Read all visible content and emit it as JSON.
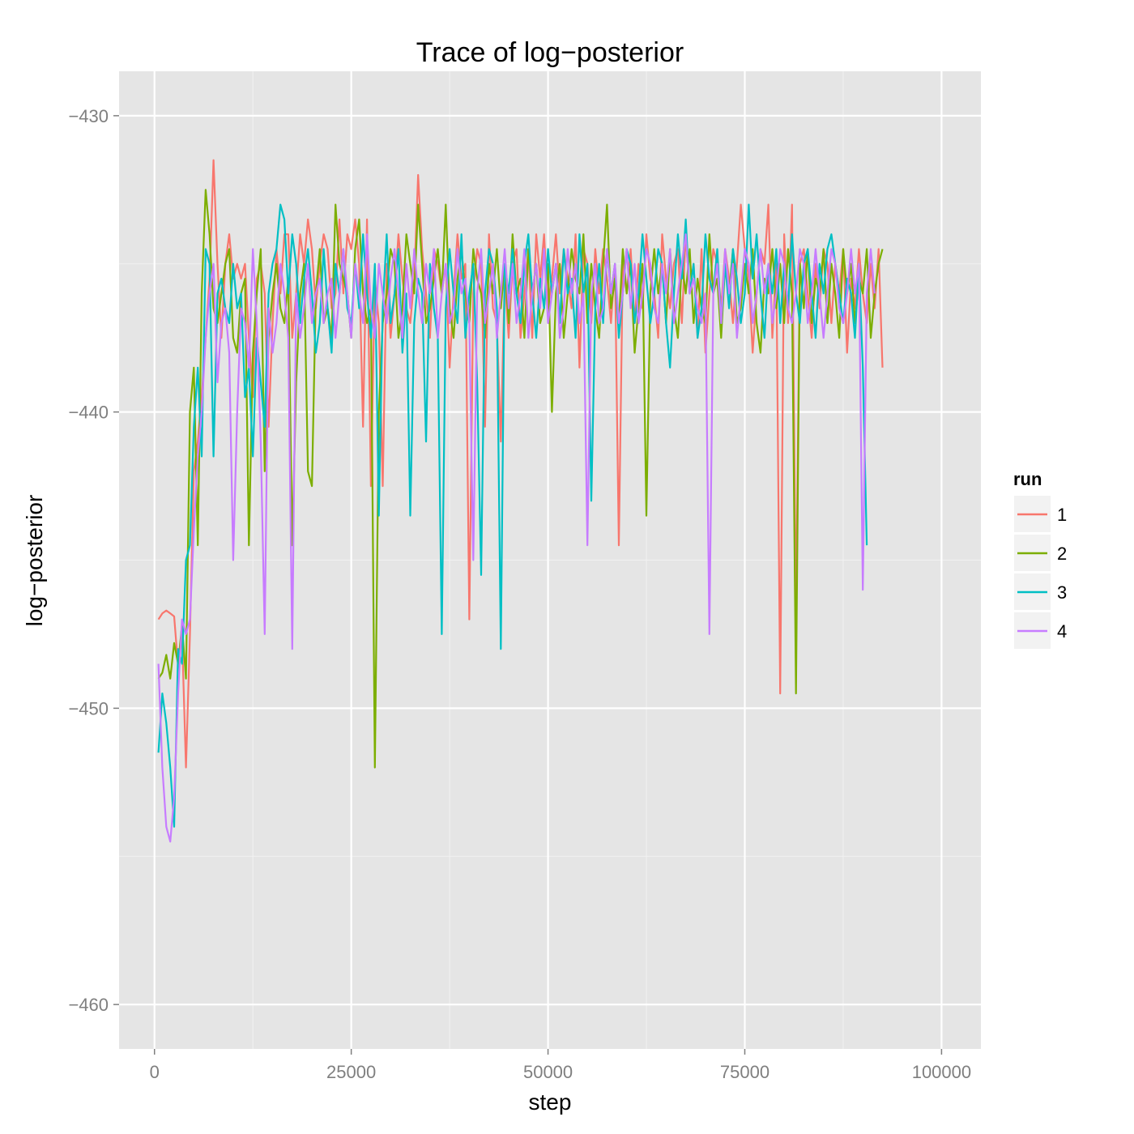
{
  "chart_data": {
    "type": "line",
    "title": "Trace of log−posterior",
    "xlabel": "step",
    "ylabel": "log−posterior",
    "xlim": [
      -4500,
      105000
    ],
    "ylim": [
      -461.5,
      -428.5
    ],
    "x_ticks": [
      0,
      25000,
      50000,
      75000,
      100000
    ],
    "x_tick_labels": [
      "0",
      "25000",
      "50000",
      "75000",
      "100000"
    ],
    "y_ticks": [
      -460,
      -450,
      -440,
      -430
    ],
    "y_tick_labels": [
      "−460",
      "−450",
      "−440",
      "−430"
    ],
    "grid": true,
    "background": "#e5e5e5",
    "legend": {
      "title": "run",
      "position": "right"
    },
    "x_start": 500,
    "x_step": 500,
    "series": [
      {
        "name": "1",
        "color": "#f8766d",
        "values": [
          -447.0,
          -446.8,
          -446.7,
          -446.8,
          -446.9,
          -448.6,
          -447.5,
          -452.0,
          -447.5,
          -442.0,
          -441.0,
          -439.5,
          -437.5,
          -435.5,
          -431.5,
          -435.0,
          -437.5,
          -435.0,
          -434.0,
          -435.5,
          -435.0,
          -435.5,
          -435.0,
          -437.5,
          -439.5,
          -435.5,
          -435.0,
          -436.0,
          -440.5,
          -437.0,
          -434.5,
          -436.0,
          -434.0,
          -434.0,
          -437.5,
          -436.0,
          -434.0,
          -435.0,
          -433.5,
          -434.5,
          -436.5,
          -435.0,
          -434.0,
          -434.5,
          -436.5,
          -436.0,
          -433.5,
          -436.0,
          -434.0,
          -434.5,
          -433.5,
          -435.0,
          -440.5,
          -433.5,
          -442.5,
          -435.5,
          -437.0,
          -442.5,
          -435.0,
          -437.5,
          -436.0,
          -434.0,
          -435.5,
          -436.5,
          -437.0,
          -435.5,
          -432.0,
          -434.5,
          -436.0,
          -437.5,
          -434.5,
          -435.0,
          -436.0,
          -435.0,
          -438.5,
          -436.0,
          -434.0,
          -435.5,
          -435.0,
          -447.0,
          -436.0,
          -434.5,
          -435.0,
          -440.5,
          -434.0,
          -436.5,
          -437.0,
          -441.0,
          -435.5,
          -437.5,
          -435.0,
          -434.5,
          -437.5,
          -436.0,
          -434.5,
          -437.5,
          -434.0,
          -435.5,
          -434.0,
          -436.5,
          -435.5,
          -434.0,
          -436.0,
          -434.5,
          -435.5,
          -436.5,
          -434.0,
          -438.5,
          -434.5,
          -435.0,
          -437.0,
          -434.5,
          -436.0,
          -434.5,
          -435.5,
          -437.0,
          -435.0,
          -444.5,
          -435.0,
          -436.0,
          -434.5,
          -437.0,
          -435.0,
          -436.5,
          -434.0,
          -435.5,
          -436.0,
          -437.5,
          -434.0,
          -435.5,
          -436.5,
          -435.0,
          -434.5,
          -437.0,
          -434.0,
          -436.0,
          -435.0,
          -437.5,
          -434.5,
          -438.0,
          -436.0,
          -434.5,
          -435.0,
          -436.5,
          -434.5,
          -435.5,
          -437.0,
          -435.0,
          -433.0,
          -434.5,
          -435.5,
          -438.0,
          -436.0,
          -434.5,
          -435.0,
          -433.0,
          -437.5,
          -435.0,
          -449.5,
          -434.0,
          -437.0,
          -433.0,
          -447.0,
          -435.0,
          -434.5,
          -436.0,
          -437.5,
          -435.0,
          -436.5,
          -434.5,
          -435.0,
          -437.0,
          -435.0,
          -436.0,
          -434.5,
          -438.0,
          -435.5,
          -436.5,
          -434.5,
          -436.0,
          -437.0,
          -435.0,
          -436.5,
          -434.5,
          -438.5
        ]
      },
      {
        "name": "2",
        "color": "#7cae00",
        "values": [
          -449.0,
          -448.8,
          -448.2,
          -449.0,
          -447.8,
          -448.5,
          -447.2,
          -449.0,
          -440.0,
          -438.5,
          -444.5,
          -436.0,
          -432.5,
          -434.0,
          -436.5,
          -437.0,
          -436.0,
          -435.0,
          -434.5,
          -437.5,
          -438.0,
          -436.0,
          -435.5,
          -444.5,
          -438.0,
          -436.0,
          -434.5,
          -442.0,
          -437.5,
          -436.0,
          -435.0,
          -436.5,
          -437.0,
          -435.5,
          -444.5,
          -439.0,
          -436.0,
          -435.0,
          -442.0,
          -442.5,
          -436.0,
          -434.5,
          -437.0,
          -436.5,
          -437.5,
          -433.0,
          -435.0,
          -435.5,
          -436.0,
          -437.5,
          -434.5,
          -433.5,
          -436.0,
          -437.0,
          -436.5,
          -452.0,
          -440.0,
          -437.0,
          -436.0,
          -434.5,
          -435.0,
          -437.5,
          -436.5,
          -434.0,
          -435.0,
          -436.0,
          -433.0,
          -435.0,
          -437.0,
          -436.5,
          -435.5,
          -434.5,
          -436.0,
          -433.0,
          -436.5,
          -437.5,
          -435.5,
          -434.5,
          -436.0,
          -437.0,
          -434.5,
          -435.5,
          -436.0,
          -437.5,
          -435.0,
          -436.0,
          -434.5,
          -436.5,
          -435.0,
          -437.0,
          -434.0,
          -436.0,
          -435.5,
          -437.5,
          -434.5,
          -436.0,
          -435.0,
          -437.0,
          -436.5,
          -435.0,
          -440.0,
          -436.0,
          -435.0,
          -437.5,
          -436.0,
          -434.5,
          -435.5,
          -436.0,
          -434.0,
          -437.0,
          -435.0,
          -436.5,
          -437.5,
          -435.0,
          -433.0,
          -436.5,
          -435.5,
          -437.0,
          -434.5,
          -436.0,
          -435.0,
          -438.0,
          -436.5,
          -435.0,
          -443.5,
          -436.0,
          -434.5,
          -436.0,
          -435.0,
          -437.0,
          -434.5,
          -436.5,
          -437.5,
          -435.0,
          -436.0,
          -434.5,
          -437.0,
          -435.5,
          -436.5,
          -437.0,
          -434.0,
          -436.0,
          -435.5,
          -437.5,
          -435.0,
          -436.0,
          -434.5,
          -437.0,
          -436.5,
          -435.0,
          -436.0,
          -434.5,
          -437.0,
          -438.0,
          -435.5,
          -436.0,
          -434.5,
          -436.5,
          -435.0,
          -437.0,
          -434.5,
          -436.0,
          -449.5,
          -435.0,
          -436.5,
          -434.5,
          -437.0,
          -435.5,
          -436.0,
          -434.5,
          -437.0,
          -435.0,
          -436.0,
          -437.5,
          -434.5,
          -436.0,
          -435.0,
          -437.0,
          -435.5,
          -436.0,
          -434.5,
          -437.5,
          -436.0,
          -435.0,
          -434.5
        ]
      },
      {
        "name": "3",
        "color": "#00bfc4",
        "values": [
          -451.5,
          -449.5,
          -450.5,
          -452.0,
          -454.0,
          -448.0,
          -448.5,
          -445.0,
          -444.5,
          -440.5,
          -438.5,
          -441.5,
          -434.5,
          -435.0,
          -441.5,
          -436.0,
          -435.5,
          -436.5,
          -437.0,
          -435.0,
          -436.5,
          -436.0,
          -439.5,
          -438.5,
          -441.5,
          -437.5,
          -439.0,
          -440.5,
          -436.0,
          -435.0,
          -434.5,
          -433.0,
          -433.5,
          -436.0,
          -434.0,
          -435.0,
          -437.0,
          -435.5,
          -434.5,
          -436.0,
          -438.0,
          -437.0,
          -434.5,
          -436.5,
          -438.0,
          -435.0,
          -436.0,
          -434.5,
          -436.5,
          -437.0,
          -435.0,
          -436.5,
          -434.0,
          -436.0,
          -437.5,
          -435.0,
          -443.5,
          -436.5,
          -434.0,
          -437.0,
          -436.0,
          -434.5,
          -438.0,
          -436.0,
          -443.5,
          -437.0,
          -435.5,
          -436.0,
          -441.0,
          -435.0,
          -436.5,
          -437.5,
          -447.5,
          -436.5,
          -434.5,
          -436.0,
          -437.0,
          -434.0,
          -437.5,
          -436.0,
          -435.0,
          -439.0,
          -445.5,
          -436.0,
          -434.5,
          -435.0,
          -436.5,
          -448.0,
          -435.0,
          -436.0,
          -434.5,
          -436.0,
          -437.0,
          -435.0,
          -434.0,
          -436.0,
          -437.5,
          -435.5,
          -436.5,
          -434.5,
          -436.0,
          -435.0,
          -437.0,
          -434.5,
          -436.0,
          -435.5,
          -437.5,
          -434.0,
          -436.0,
          -435.0,
          -443.0,
          -436.5,
          -435.0,
          -437.0,
          -434.5,
          -436.0,
          -435.0,
          -437.5,
          -436.0,
          -434.5,
          -435.0,
          -437.0,
          -436.0,
          -434.0,
          -435.5,
          -437.0,
          -436.0,
          -434.5,
          -435.0,
          -437.0,
          -438.5,
          -436.0,
          -434.0,
          -435.5,
          -433.5,
          -436.0,
          -435.0,
          -437.5,
          -436.5,
          -434.0,
          -435.5,
          -436.0,
          -434.5,
          -437.0,
          -435.0,
          -436.5,
          -434.5,
          -435.5,
          -437.0,
          -436.0,
          -433.0,
          -435.5,
          -434.0,
          -436.0,
          -437.5,
          -435.0,
          -436.0,
          -434.5,
          -437.0,
          -435.0,
          -436.5,
          -434.0,
          -436.0,
          -437.0,
          -435.0,
          -434.5,
          -436.0,
          -437.5,
          -435.0,
          -436.0,
          -434.5,
          -434.0,
          -435.0,
          -436.0,
          -437.0,
          -435.5,
          -436.0,
          -437.5,
          -435.0,
          -438.5,
          -444.5
        ]
      },
      {
        "name": "4",
        "color": "#c77cff",
        "values": [
          -448.5,
          -452.0,
          -454.0,
          -454.5,
          -453.0,
          -449.5,
          -447.0,
          -447.5,
          -447.0,
          -444.0,
          -441.5,
          -440.0,
          -437.5,
          -436.0,
          -435.0,
          -439.0,
          -437.0,
          -436.5,
          -438.0,
          -445.0,
          -440.0,
          -436.5,
          -437.0,
          -438.5,
          -434.5,
          -437.0,
          -441.0,
          -447.5,
          -436.5,
          -438.0,
          -437.0,
          -435.0,
          -436.0,
          -437.5,
          -448.0,
          -436.0,
          -437.5,
          -436.5,
          -435.0,
          -437.0,
          -436.0,
          -435.5,
          -437.0,
          -436.0,
          -435.5,
          -437.5,
          -436.0,
          -434.5,
          -436.0,
          -437.5,
          -435.0,
          -436.0,
          -437.0,
          -434.0,
          -436.5,
          -437.5,
          -435.0,
          -436.0,
          -437.0,
          -435.5,
          -434.5,
          -436.0,
          -437.5,
          -435.0,
          -436.5,
          -434.5,
          -436.0,
          -437.0,
          -435.0,
          -436.0,
          -434.5,
          -437.5,
          -436.0,
          -435.0,
          -437.0,
          -436.5,
          -434.5,
          -436.0,
          -435.5,
          -437.0,
          -445.0,
          -436.0,
          -434.5,
          -437.0,
          -436.0,
          -435.0,
          -437.5,
          -436.0,
          -434.5,
          -436.5,
          -435.0,
          -437.0,
          -436.0,
          -434.5,
          -437.5,
          -436.0,
          -435.0,
          -436.5,
          -434.5,
          -437.0,
          -436.0,
          -435.0,
          -437.5,
          -436.5,
          -434.5,
          -436.0,
          -435.0,
          -437.0,
          -436.0,
          -444.5,
          -436.0,
          -435.0,
          -437.0,
          -436.5,
          -434.5,
          -436.0,
          -435.0,
          -437.0,
          -436.0,
          -434.5,
          -436.5,
          -435.0,
          -437.0,
          -436.0,
          -434.5,
          -435.0,
          -436.5,
          -437.0,
          -435.0,
          -436.0,
          -434.5,
          -437.0,
          -436.0,
          -435.0,
          -434.0,
          -436.0,
          -435.5,
          -436.5,
          -437.0,
          -436.0,
          -447.5,
          -436.0,
          -435.0,
          -437.0,
          -434.5,
          -436.0,
          -435.0,
          -437.5,
          -436.0,
          -434.5,
          -435.0,
          -437.0,
          -436.0,
          -434.5,
          -436.0,
          -435.0,
          -437.0,
          -436.0,
          -434.5,
          -435.0,
          -436.5,
          -437.0,
          -436.0,
          -434.5,
          -435.0,
          -437.0,
          -436.0,
          -434.5,
          -436.0,
          -437.5,
          -436.0,
          -434.5,
          -435.0,
          -436.5,
          -437.0,
          -436.0,
          -434.5,
          -436.0,
          -435.0,
          -446.0,
          -436.0,
          -434.5,
          -436.0
        ]
      }
    ]
  }
}
